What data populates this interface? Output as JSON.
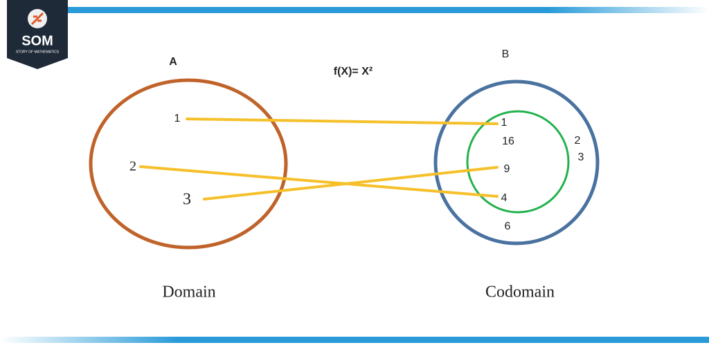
{
  "logo": {
    "title": "SOM",
    "tagline": "STORY OF MATHEMATICS"
  },
  "function_label": "f(X)= X²",
  "sets": [
    {
      "label": "A",
      "caption": "Domain",
      "elements": [
        "1",
        "2",
        "3"
      ]
    },
    {
      "label": "B",
      "caption": "Codomain",
      "inner_elements": [
        "1",
        "16",
        "9",
        "4"
      ],
      "outer_elements": [
        "2",
        "3",
        "6"
      ]
    }
  ]
}
